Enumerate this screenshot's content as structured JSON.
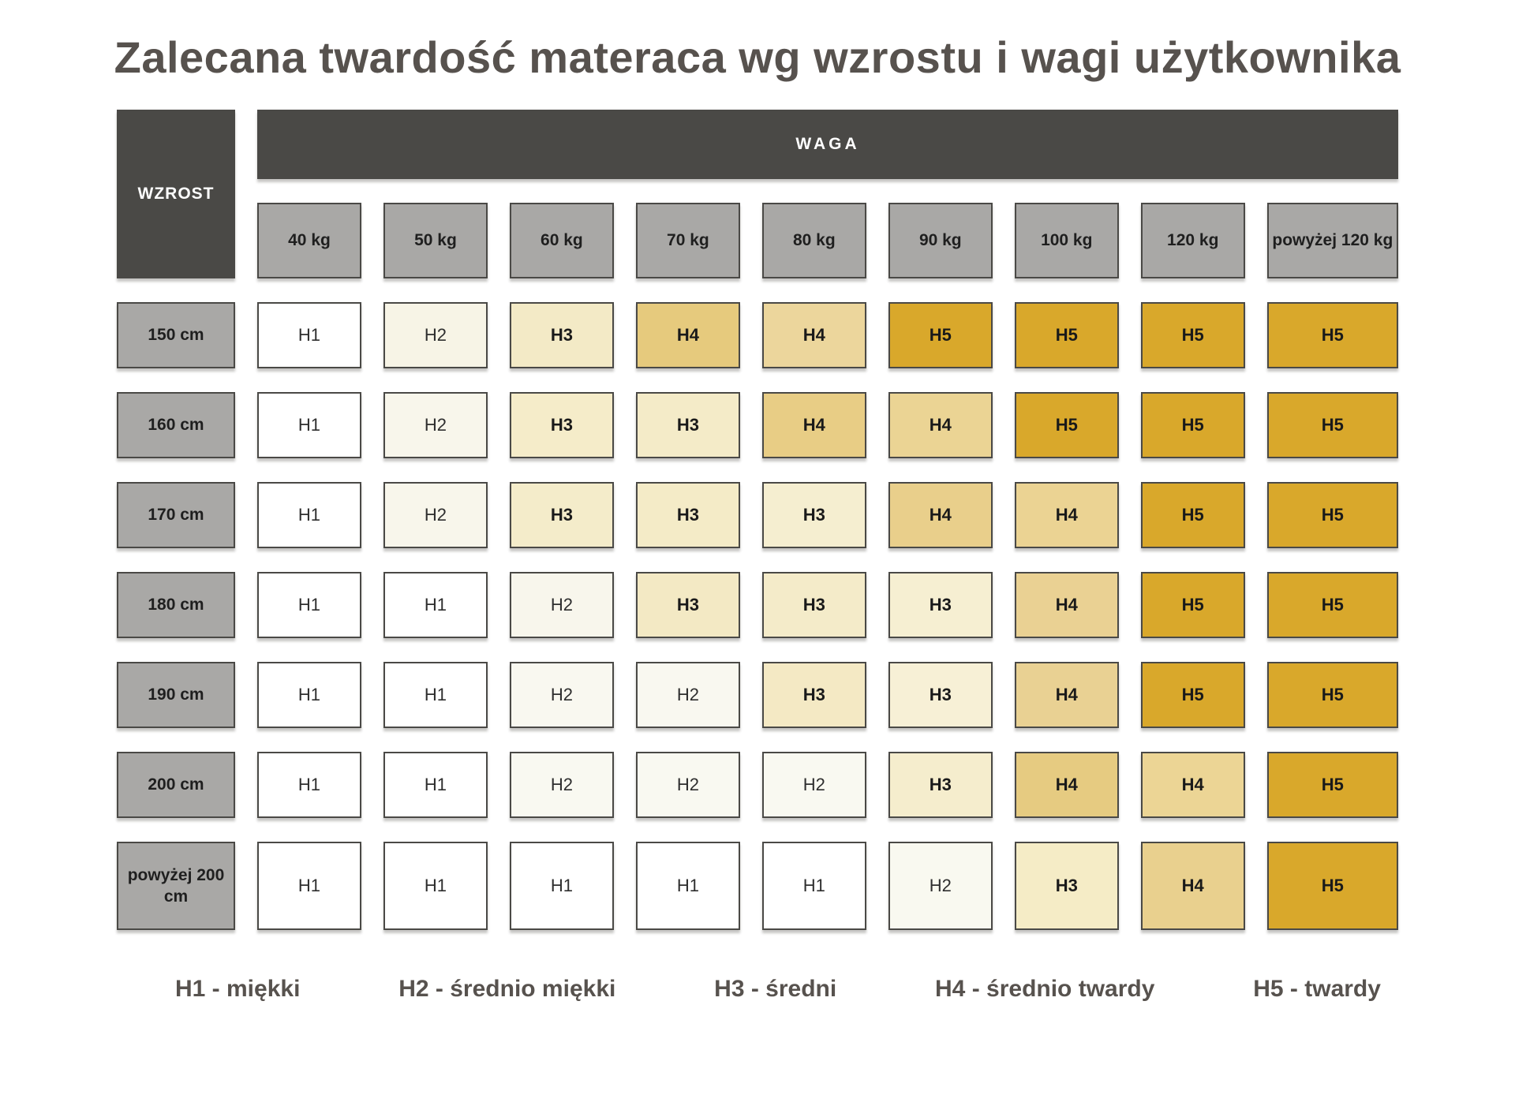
{
  "title": "Zalecana twardość materaca wg wzrostu i wagi użytkownika",
  "table": {
    "weight_group_label": "WAGA",
    "height_group_label": "WZROST",
    "weight_headers": [
      "40 kg",
      "50 kg",
      "60 kg",
      "70 kg",
      "80 kg",
      "90 kg",
      "100 kg",
      "120 kg",
      "powyżej 120 kg"
    ],
    "rows": [
      {
        "height": "150 cm",
        "cells": [
          {
            "v": "H1",
            "color": "#ffffff",
            "bold": false
          },
          {
            "v": "H2",
            "color": "#f7f4e6",
            "bold": false
          },
          {
            "v": "H3",
            "color": "#f3eac6",
            "bold": true
          },
          {
            "v": "H4",
            "color": "#e6ca7d",
            "bold": true
          },
          {
            "v": "H4",
            "color": "#ecd69c",
            "bold": true
          },
          {
            "v": "H5",
            "color": "#d9a82b",
            "bold": true
          },
          {
            "v": "H5",
            "color": "#d9a82b",
            "bold": true
          },
          {
            "v": "H5",
            "color": "#d9a82b",
            "bold": true
          },
          {
            "v": "H5",
            "color": "#d9a82b",
            "bold": true
          }
        ]
      },
      {
        "height": "160 cm",
        "cells": [
          {
            "v": "H1",
            "color": "#ffffff",
            "bold": false
          },
          {
            "v": "H2",
            "color": "#f8f6eb",
            "bold": false
          },
          {
            "v": "H3",
            "color": "#f5ecc9",
            "bold": true
          },
          {
            "v": "H3",
            "color": "#f4ebc8",
            "bold": true
          },
          {
            "v": "H4",
            "color": "#e8cd85",
            "bold": true
          },
          {
            "v": "H4",
            "color": "#ebd494",
            "bold": true
          },
          {
            "v": "H5",
            "color": "#d9a82b",
            "bold": true
          },
          {
            "v": "H5",
            "color": "#d9a82b",
            "bold": true
          },
          {
            "v": "H5",
            "color": "#d9a82b",
            "bold": true
          }
        ]
      },
      {
        "height": "170 cm",
        "cells": [
          {
            "v": "H1",
            "color": "#ffffff",
            "bold": false
          },
          {
            "v": "H2",
            "color": "#f8f6eb",
            "bold": false
          },
          {
            "v": "H3",
            "color": "#f4ecca",
            "bold": true
          },
          {
            "v": "H3",
            "color": "#f4ebc7",
            "bold": true
          },
          {
            "v": "H3",
            "color": "#f5eed0",
            "bold": true
          },
          {
            "v": "H4",
            "color": "#e9cf8b",
            "bold": true
          },
          {
            "v": "H4",
            "color": "#ebd393",
            "bold": true
          },
          {
            "v": "H5",
            "color": "#d9a82b",
            "bold": true
          },
          {
            "v": "H5",
            "color": "#d9a82b",
            "bold": true
          }
        ]
      },
      {
        "height": "180 cm",
        "cells": [
          {
            "v": "H1",
            "color": "#ffffff",
            "bold": false
          },
          {
            "v": "H1",
            "color": "#ffffff",
            "bold": false
          },
          {
            "v": "H2",
            "color": "#f8f6ec",
            "bold": false
          },
          {
            "v": "H3",
            "color": "#f3e9c4",
            "bold": true
          },
          {
            "v": "H3",
            "color": "#f4ebc9",
            "bold": true
          },
          {
            "v": "H3",
            "color": "#f6efd2",
            "bold": true
          },
          {
            "v": "H4",
            "color": "#ead193",
            "bold": true
          },
          {
            "v": "H5",
            "color": "#d9a82b",
            "bold": true
          },
          {
            "v": "H5",
            "color": "#d9a82b",
            "bold": true
          }
        ]
      },
      {
        "height": "190 cm",
        "cells": [
          {
            "v": "H1",
            "color": "#ffffff",
            "bold": false
          },
          {
            "v": "H1",
            "color": "#ffffff",
            "bold": false
          },
          {
            "v": "H2",
            "color": "#f9f8f0",
            "bold": false
          },
          {
            "v": "H2",
            "color": "#f9f8f0",
            "bold": false
          },
          {
            "v": "H3",
            "color": "#f4e9c4",
            "bold": true
          },
          {
            "v": "H3",
            "color": "#f7f0d6",
            "bold": true
          },
          {
            "v": "H4",
            "color": "#e9d193",
            "bold": true
          },
          {
            "v": "H5",
            "color": "#d9a82b",
            "bold": true
          },
          {
            "v": "H5",
            "color": "#d9a82b",
            "bold": true
          }
        ]
      },
      {
        "height": "200 cm",
        "cells": [
          {
            "v": "H1",
            "color": "#ffffff",
            "bold": false
          },
          {
            "v": "H1",
            "color": "#ffffff",
            "bold": false
          },
          {
            "v": "H2",
            "color": "#f9f9f1",
            "bold": false
          },
          {
            "v": "H2",
            "color": "#f9f9f1",
            "bold": false
          },
          {
            "v": "H2",
            "color": "#f9f9f1",
            "bold": false
          },
          {
            "v": "H3",
            "color": "#f5edcd",
            "bold": true
          },
          {
            "v": "H4",
            "color": "#e6cb81",
            "bold": true
          },
          {
            "v": "H4",
            "color": "#ecd595",
            "bold": true
          },
          {
            "v": "H5",
            "color": "#d9a82b",
            "bold": true
          }
        ]
      },
      {
        "height": "powyżej 200 cm",
        "cells": [
          {
            "v": "H1",
            "color": "#ffffff",
            "bold": false
          },
          {
            "v": "H1",
            "color": "#ffffff",
            "bold": false
          },
          {
            "v": "H1",
            "color": "#ffffff",
            "bold": false
          },
          {
            "v": "H1",
            "color": "#ffffff",
            "bold": false
          },
          {
            "v": "H1",
            "color": "#ffffff",
            "bold": false
          },
          {
            "v": "H2",
            "color": "#f9f9f0",
            "bold": false
          },
          {
            "v": "H3",
            "color": "#f5ecc6",
            "bold": true
          },
          {
            "v": "H4",
            "color": "#e9d08e",
            "bold": true
          },
          {
            "v": "H5",
            "color": "#d9a82b",
            "bold": true
          }
        ]
      }
    ]
  },
  "legend": {
    "items": [
      "H1 - miękki",
      "H2 - średnio miękki",
      "H3 - średni",
      "H4 - średnio twardy",
      "H5 - twardy"
    ]
  },
  "colors": {
    "header_dark": "#4a4946",
    "header_gray": "#a9a8a6",
    "cell_border": "#4a4946",
    "title_text": "#57524e",
    "h1_white": "#ffffff",
    "h2_pale": "#f8f6eb",
    "h3_cream": "#f4ebc8",
    "h4_tan": "#e8cd85",
    "h5_gold": "#d9a82b"
  },
  "chart_data": {
    "type": "heatmap",
    "title": "Zalecana twardość materaca wg wzrostu i wagi użytkownika",
    "x_axis_label": "WAGA",
    "y_axis_label": "WZROST",
    "x_categories": [
      "40 kg",
      "50 kg",
      "60 kg",
      "70 kg",
      "80 kg",
      "90 kg",
      "100 kg",
      "120 kg",
      "powyżej 120 kg"
    ],
    "y_categories": [
      "150 cm",
      "160 cm",
      "170 cm",
      "180 cm",
      "190 cm",
      "200 cm",
      "powyżej 200 cm"
    ],
    "values": [
      [
        "H1",
        "H2",
        "H3",
        "H4",
        "H4",
        "H5",
        "H5",
        "H5",
        "H5"
      ],
      [
        "H1",
        "H2",
        "H3",
        "H3",
        "H4",
        "H4",
        "H5",
        "H5",
        "H5"
      ],
      [
        "H1",
        "H2",
        "H3",
        "H3",
        "H3",
        "H4",
        "H4",
        "H5",
        "H5"
      ],
      [
        "H1",
        "H1",
        "H2",
        "H3",
        "H3",
        "H3",
        "H4",
        "H5",
        "H5"
      ],
      [
        "H1",
        "H1",
        "H2",
        "H2",
        "H3",
        "H3",
        "H4",
        "H5",
        "H5"
      ],
      [
        "H1",
        "H1",
        "H2",
        "H2",
        "H2",
        "H3",
        "H4",
        "H4",
        "H5"
      ],
      [
        "H1",
        "H1",
        "H1",
        "H1",
        "H1",
        "H2",
        "H3",
        "H4",
        "H5"
      ]
    ],
    "value_scale": {
      "H1": "miękki",
      "H2": "średnio miękki",
      "H3": "średni",
      "H4": "średnio twardy",
      "H5": "twardy"
    },
    "legend_entries": [
      "H1 - miękki",
      "H2 - średnio miękki",
      "H3 - średni",
      "H4 - średnio twardy",
      "H5 - twardy"
    ],
    "legend_position": "bottom",
    "grid": false
  }
}
